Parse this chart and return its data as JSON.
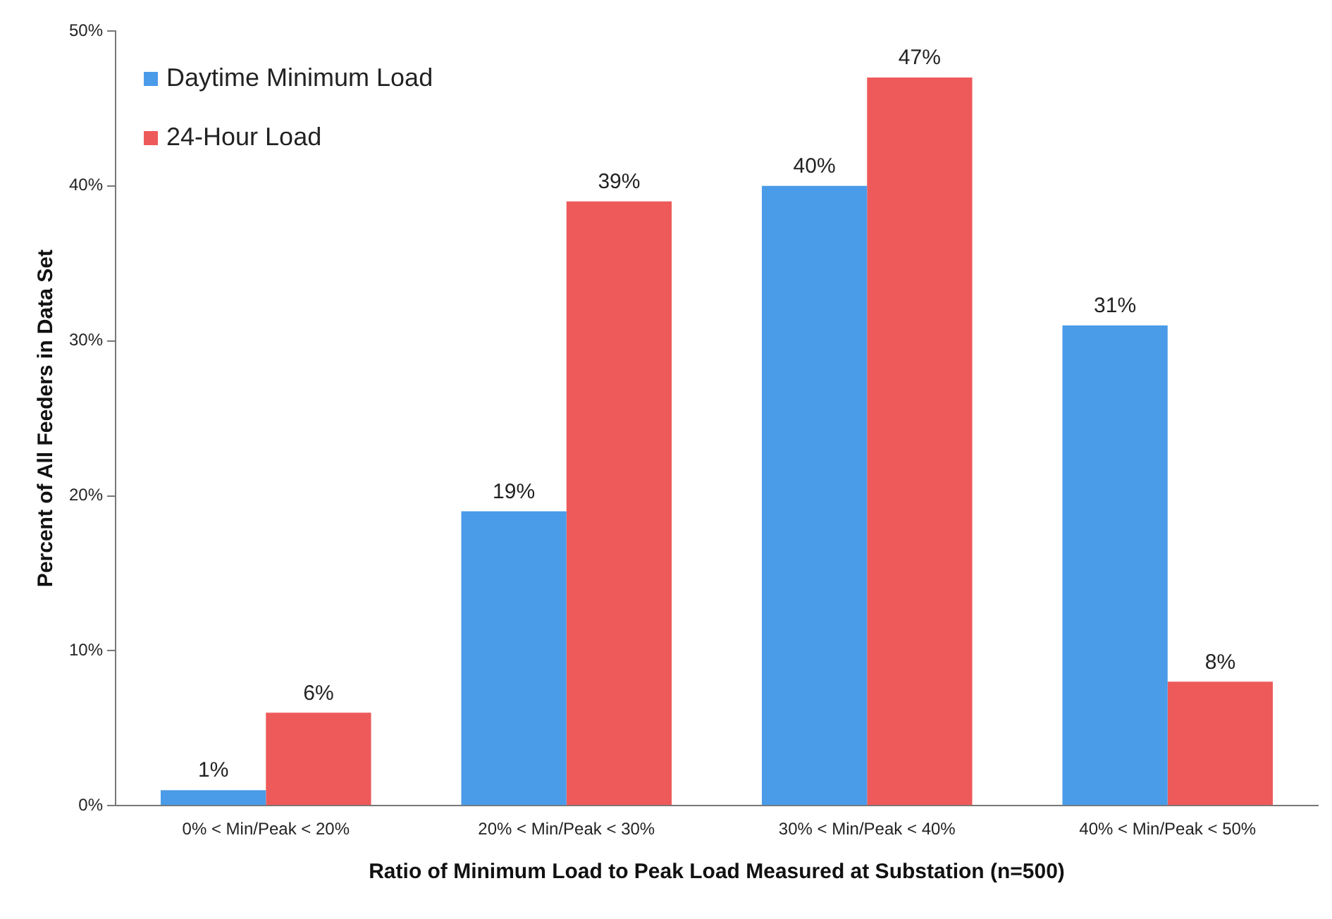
{
  "chart_data": {
    "type": "bar",
    "xlabel": "Ratio of Minimum Load to Peak Load Measured at Substation (n=500)",
    "ylabel": "Percent of All Feeders in Data Set",
    "categories": [
      "0% < Min/Peak < 20%",
      "20% < Min/Peak < 30%",
      "30% < Min/Peak < 40%",
      "40% < Min/Peak < 50%"
    ],
    "series": [
      {
        "name": "Daytime Minimum Load",
        "color": "#4a9be8",
        "values": [
          1,
          19,
          40,
          31
        ],
        "value_labels": [
          "1%",
          "19%",
          "40%",
          "31%"
        ]
      },
      {
        "name": "24-Hour Load",
        "color": "#ee5a5a",
        "values": [
          6,
          39,
          47,
          8
        ],
        "value_labels": [
          "6%",
          "39%",
          "47%",
          "8%"
        ]
      }
    ],
    "ylim": [
      0,
      50
    ],
    "yticks": [
      {
        "value": 0,
        "label": "0%"
      },
      {
        "value": 10,
        "label": "10%"
      },
      {
        "value": 20,
        "label": "20%"
      },
      {
        "value": 30,
        "label": "30%"
      },
      {
        "value": 40,
        "label": "40%"
      },
      {
        "value": 50,
        "label": "50%"
      }
    ],
    "grid": false,
    "legend": "top left"
  }
}
